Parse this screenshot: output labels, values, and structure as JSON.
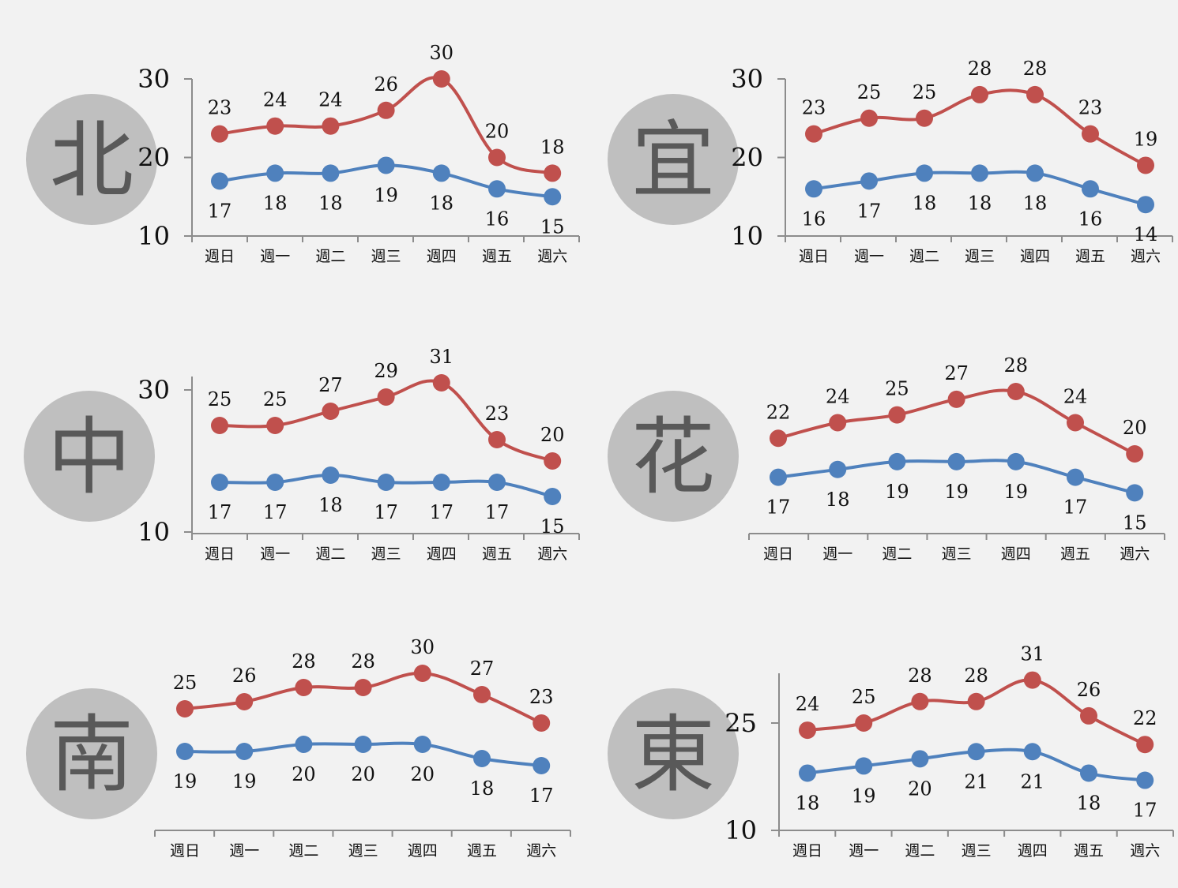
{
  "colors": {
    "high": "#c0504d",
    "low": "#4f81bd",
    "badge": "#bfbfbf",
    "badge_text": "#595959",
    "axis": "#8c8c8c",
    "background": "#f2f2f2"
  },
  "chart_data": [
    {
      "type": "line",
      "region": "北",
      "categories": [
        "週日",
        "週一",
        "週二",
        "週三",
        "週四",
        "週五",
        "週六"
      ],
      "series": [
        {
          "values": [
            23,
            24,
            24,
            26,
            30,
            20,
            18
          ]
        },
        {
          "values": [
            17,
            18,
            18,
            19,
            18,
            16,
            15
          ]
        }
      ],
      "yticks": [
        10,
        20,
        30
      ],
      "ylim": [
        10,
        30
      ]
    },
    {
      "type": "line",
      "region": "宜",
      "categories": [
        "週日",
        "週一",
        "週二",
        "週三",
        "週四",
        "週五",
        "週六"
      ],
      "series": [
        {
          "values": [
            23,
            25,
            25,
            28,
            28,
            23,
            19
          ]
        },
        {
          "values": [
            16,
            17,
            18,
            18,
            18,
            16,
            14
          ]
        }
      ],
      "yticks": [
        10,
        20,
        30
      ],
      "ylim": [
        10,
        30
      ]
    },
    {
      "type": "line",
      "region": "中",
      "categories": [
        "週日",
        "週一",
        "週二",
        "週三",
        "週四",
        "週五",
        "週六"
      ],
      "series": [
        {
          "values": [
            25,
            25,
            27,
            29,
            31,
            23,
            20
          ]
        },
        {
          "values": [
            17,
            17,
            18,
            17,
            17,
            17,
            15
          ]
        }
      ],
      "yticks": [
        10,
        30
      ],
      "ylim": [
        10,
        32
      ]
    },
    {
      "type": "line",
      "region": "花",
      "categories": [
        "週日",
        "週一",
        "週二",
        "週三",
        "週四",
        "週五",
        "週六"
      ],
      "series": [
        {
          "values": [
            22,
            24,
            25,
            27,
            28,
            24,
            20
          ]
        },
        {
          "values": [
            17,
            18,
            19,
            19,
            19,
            17,
            15
          ]
        }
      ],
      "yticks": [],
      "ylim": [
        8,
        32
      ]
    },
    {
      "type": "line",
      "region": "南",
      "categories": [
        "週日",
        "週一",
        "週二",
        "週三",
        "週四",
        "週五",
        "週六"
      ],
      "series": [
        {
          "values": [
            25,
            26,
            28,
            28,
            30,
            27,
            23
          ]
        },
        {
          "values": [
            19,
            19,
            20,
            20,
            20,
            18,
            17
          ]
        }
      ],
      "yticks": [],
      "ylim": [
        8,
        32
      ]
    },
    {
      "type": "line",
      "region": "東",
      "categories": [
        "週日",
        "週一",
        "週二",
        "週三",
        "週四",
        "週五",
        "週六"
      ],
      "series": [
        {
          "values": [
            24,
            25,
            28,
            28,
            31,
            26,
            22
          ]
        },
        {
          "values": [
            18,
            19,
            20,
            21,
            21,
            18,
            17
          ]
        }
      ],
      "yticks": [
        10,
        25
      ],
      "ylim": [
        10,
        33
      ]
    }
  ]
}
